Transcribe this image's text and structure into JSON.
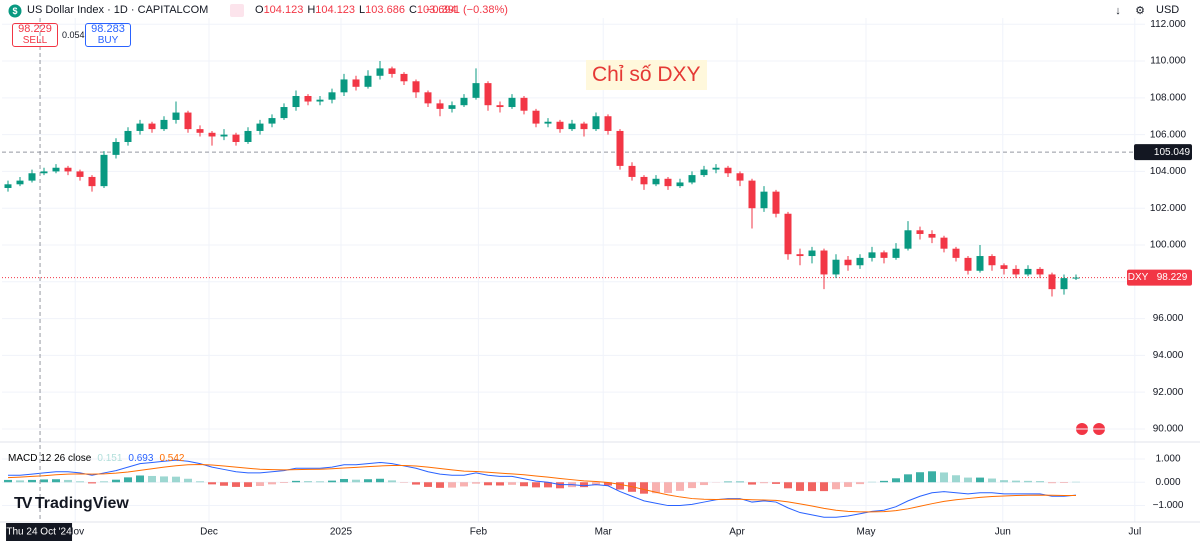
{
  "header": {
    "symbol": "US Dollar Index · 1D · CAPITALCOM",
    "ohlc": [
      {
        "label": "O",
        "value": 104.123
      },
      {
        "label": "H",
        "value": 104.123
      },
      {
        "label": "L",
        "value": 103.686
      },
      {
        "label": "C",
        "value": 103.694
      }
    ],
    "change": "−0.391 (−0.38%)",
    "sell": {
      "price": "98.229",
      "label": "SELL"
    },
    "spread": "0.054",
    "buy": {
      "price": "98.283",
      "label": "BUY"
    },
    "currency": "USD",
    "logo": "TradingView"
  },
  "chart_data": [
    {
      "type": "candlestick",
      "annotation": "Chỉ số DXY",
      "candles": [
        [
          103.1,
          103.5,
          102.9,
          103.3
        ],
        [
          103.3,
          103.7,
          103.2,
          103.5
        ],
        [
          103.5,
          104.1,
          103.4,
          103.9
        ],
        [
          103.9,
          104.2,
          103.8,
          104.0
        ],
        [
          104.0,
          104.4,
          103.9,
          104.2
        ],
        [
          104.2,
          104.3,
          103.8,
          104.0
        ],
        [
          104.0,
          104.1,
          103.5,
          103.7
        ],
        [
          103.7,
          103.8,
          102.9,
          103.2
        ],
        [
          103.2,
          105.1,
          103.1,
          104.9
        ],
        [
          104.9,
          105.8,
          104.7,
          105.6
        ],
        [
          105.6,
          106.4,
          105.4,
          106.2
        ],
        [
          106.2,
          106.8,
          106.0,
          106.6
        ],
        [
          106.6,
          106.7,
          106.1,
          106.3
        ],
        [
          106.3,
          107.0,
          106.2,
          106.8
        ],
        [
          106.8,
          107.8,
          106.6,
          107.2
        ],
        [
          107.2,
          107.3,
          106.1,
          106.3
        ],
        [
          106.3,
          106.5,
          105.9,
          106.1
        ],
        [
          106.1,
          106.2,
          105.4,
          105.9
        ],
        [
          105.9,
          106.3,
          105.7,
          106.0
        ],
        [
          106.0,
          106.1,
          105.4,
          105.6
        ],
        [
          105.6,
          106.4,
          105.5,
          106.2
        ],
        [
          106.2,
          106.8,
          106.0,
          106.6
        ],
        [
          106.6,
          107.1,
          106.4,
          106.9
        ],
        [
          106.9,
          107.7,
          106.8,
          107.5
        ],
        [
          107.5,
          108.4,
          107.3,
          108.1
        ],
        [
          108.1,
          108.2,
          107.6,
          107.8
        ],
        [
          107.8,
          108.1,
          107.6,
          107.9
        ],
        [
          107.9,
          108.5,
          107.7,
          108.3
        ],
        [
          108.3,
          109.3,
          108.1,
          109.0
        ],
        [
          109.0,
          109.2,
          108.4,
          108.6
        ],
        [
          108.6,
          109.5,
          108.5,
          109.2
        ],
        [
          109.2,
          110.0,
          109.0,
          109.6
        ],
        [
          109.6,
          109.7,
          109.1,
          109.3
        ],
        [
          109.3,
          109.4,
          108.7,
          108.9
        ],
        [
          108.9,
          109.0,
          108.0,
          108.3
        ],
        [
          108.3,
          108.4,
          107.5,
          107.7
        ],
        [
          107.7,
          107.9,
          107.0,
          107.4
        ],
        [
          107.4,
          107.8,
          107.2,
          107.6
        ],
        [
          107.6,
          108.2,
          107.5,
          108.0
        ],
        [
          108.0,
          109.6,
          107.9,
          108.8
        ],
        [
          108.8,
          108.9,
          107.3,
          107.6
        ],
        [
          107.6,
          107.8,
          107.2,
          107.5
        ],
        [
          107.5,
          108.2,
          107.4,
          108.0
        ],
        [
          108.0,
          108.1,
          107.1,
          107.3
        ],
        [
          107.3,
          107.4,
          106.4,
          106.6
        ],
        [
          106.6,
          106.9,
          106.4,
          106.7
        ],
        [
          106.7,
          106.8,
          106.1,
          106.3
        ],
        [
          106.3,
          106.8,
          106.2,
          106.6
        ],
        [
          106.6,
          106.7,
          105.9,
          106.3
        ],
        [
          106.3,
          107.2,
          106.2,
          107.0
        ],
        [
          107.0,
          107.1,
          106.0,
          106.2
        ],
        [
          106.2,
          106.3,
          104.1,
          104.3
        ],
        [
          104.3,
          104.5,
          103.5,
          103.7
        ],
        [
          103.7,
          103.8,
          103.0,
          103.3
        ],
        [
          103.3,
          103.8,
          103.2,
          103.6
        ],
        [
          103.6,
          103.7,
          103.0,
          103.2
        ],
        [
          103.2,
          103.6,
          103.1,
          103.4
        ],
        [
          103.4,
          104.0,
          103.3,
          103.8
        ],
        [
          103.8,
          104.3,
          103.7,
          104.1
        ],
        [
          104.1,
          104.4,
          103.9,
          104.2
        ],
        [
          104.2,
          104.3,
          103.7,
          103.9
        ],
        [
          103.9,
          104.0,
          103.2,
          103.5
        ],
        [
          103.5,
          103.6,
          100.9,
          102.0
        ],
        [
          102.0,
          103.2,
          101.8,
          102.9
        ],
        [
          102.9,
          103.0,
          101.5,
          101.7
        ],
        [
          101.7,
          101.8,
          99.2,
          99.5
        ],
        [
          99.5,
          99.8,
          98.9,
          99.4
        ],
        [
          99.4,
          99.9,
          99.0,
          99.7
        ],
        [
          99.7,
          99.8,
          97.6,
          98.4
        ],
        [
          98.4,
          99.5,
          98.2,
          99.2
        ],
        [
          99.2,
          99.4,
          98.6,
          98.9
        ],
        [
          98.9,
          99.5,
          98.7,
          99.3
        ],
        [
          99.3,
          99.9,
          99.1,
          99.6
        ],
        [
          99.6,
          99.7,
          99.0,
          99.3
        ],
        [
          99.3,
          100.1,
          99.2,
          99.8
        ],
        [
          99.8,
          101.3,
          99.7,
          100.8
        ],
        [
          100.8,
          101.0,
          100.3,
          100.6
        ],
        [
          100.6,
          100.8,
          100.1,
          100.4
        ],
        [
          100.4,
          100.5,
          99.6,
          99.8
        ],
        [
          99.8,
          99.9,
          99.1,
          99.3
        ],
        [
          99.3,
          99.4,
          98.4,
          98.6
        ],
        [
          98.6,
          100.0,
          98.5,
          99.4
        ],
        [
          99.4,
          99.5,
          98.6,
          98.9
        ],
        [
          98.9,
          99.0,
          98.4,
          98.7
        ],
        [
          98.7,
          98.9,
          98.2,
          98.4
        ],
        [
          98.4,
          98.9,
          98.3,
          98.7
        ],
        [
          98.7,
          98.8,
          98.2,
          98.4
        ],
        [
          98.4,
          98.5,
          97.2,
          97.6
        ],
        [
          97.6,
          98.4,
          97.3,
          98.2
        ],
        [
          98.2,
          98.4,
          98.1,
          98.229
        ]
      ],
      "up_color": "#089981",
      "down_color": "#f23645",
      "xlim": [
        -0.5,
        94.75
      ],
      "xticks": [
        {
          "value": 5.6,
          "label": "Nov"
        },
        {
          "value": 16.75,
          "label": "Dec"
        },
        {
          "value": 27.75,
          "label": "2025"
        },
        {
          "value": 39.2,
          "label": "Feb"
        },
        {
          "value": 49.6,
          "label": "Mar"
        },
        {
          "value": 60.75,
          "label": "Apr"
        },
        {
          "value": 71.5,
          "label": "May"
        },
        {
          "value": 82.9,
          "label": "Jun"
        },
        {
          "value": 93.9,
          "label": "Jul"
        }
      ],
      "crosshair": {
        "value": 2.67,
        "label": "Thu 24 Oct '24"
      },
      "ylim": [
        89.4,
        112.34
      ],
      "yticks": [
        {
          "value": 90,
          "label": "90.000"
        },
        {
          "value": 92,
          "label": "92.000"
        },
        {
          "value": 94,
          "label": "94.000"
        },
        {
          "value": 96,
          "label": "96.000"
        },
        {
          "value": 98,
          "label": "98.000"
        },
        {
          "value": 100,
          "label": "100.000"
        },
        {
          "value": 102,
          "label": "102.000"
        },
        {
          "value": 104,
          "label": "104.000"
        },
        {
          "value": 106,
          "label": "106.000"
        },
        {
          "value": 108,
          "label": "108.000"
        },
        {
          "value": 110,
          "label": "110.000"
        },
        {
          "value": 112,
          "label": "112.000"
        }
      ],
      "ref_line": {
        "value": 105.049,
        "label": "105.049"
      },
      "last_price": {
        "name": "DXY",
        "value": 98.229,
        "label": "98.229"
      },
      "grid": true
    },
    {
      "type": "macd",
      "title": "MACD 12 26 close",
      "legend_values": [
        {
          "value": 0.151,
          "color": "#b2dfdb"
        },
        {
          "value": 0.693,
          "color": "#2962ff"
        },
        {
          "value": 0.542,
          "color": "#ff6d00"
        }
      ],
      "histogram": {
        "values": [
          0.1,
          0.08,
          0.1,
          0.12,
          0.13,
          0.1,
          0.04,
          -0.05,
          0.04,
          0.11,
          0.21,
          0.29,
          0.27,
          0.25,
          0.24,
          0.15,
          0.04,
          -0.09,
          -0.15,
          -0.2,
          -0.2,
          -0.16,
          -0.09,
          -0.03,
          0.06,
          0.05,
          0.04,
          0.07,
          0.14,
          0.11,
          0.13,
          0.15,
          0.08,
          -0.02,
          -0.1,
          -0.2,
          -0.24,
          -0.23,
          -0.18,
          -0.06,
          -0.13,
          -0.14,
          -0.11,
          -0.17,
          -0.22,
          -0.22,
          -0.26,
          -0.21,
          -0.21,
          -0.13,
          -0.14,
          -0.31,
          -0.41,
          -0.49,
          -0.47,
          -0.46,
          -0.37,
          -0.25,
          -0.12,
          -0.01,
          0.03,
          0.03,
          -0.1,
          -0.04,
          -0.07,
          -0.26,
          -0.37,
          -0.38,
          -0.38,
          -0.3,
          -0.2,
          -0.08,
          0.02,
          0.06,
          0.17,
          0.34,
          0.43,
          0.47,
          0.42,
          0.3,
          0.2,
          0.2,
          0.16,
          0.09,
          0.07,
          0.06,
          0.05,
          -0.04,
          -0.03,
          0.02
        ],
        "up_color": "#26a69a",
        "down_color": "#ef5350"
      },
      "series": [
        {
          "name": "MACD",
          "color": "#2962ff",
          "values": [
            0.3,
            0.3,
            0.35,
            0.4,
            0.45,
            0.45,
            0.4,
            0.3,
            0.4,
            0.5,
            0.65,
            0.8,
            0.85,
            0.9,
            0.95,
            0.9,
            0.8,
            0.65,
            0.55,
            0.45,
            0.4,
            0.4,
            0.45,
            0.5,
            0.6,
            0.6,
            0.6,
            0.65,
            0.75,
            0.75,
            0.8,
            0.85,
            0.8,
            0.7,
            0.6,
            0.45,
            0.35,
            0.3,
            0.3,
            0.4,
            0.3,
            0.25,
            0.25,
            0.15,
            0.05,
            0.0,
            -0.1,
            -0.1,
            -0.15,
            -0.1,
            -0.15,
            -0.4,
            -0.6,
            -0.8,
            -0.9,
            -1.0,
            -1.0,
            -0.95,
            -0.85,
            -0.75,
            -0.7,
            -0.7,
            -0.85,
            -0.8,
            -0.85,
            -1.1,
            -1.3,
            -1.4,
            -1.5,
            -1.5,
            -1.45,
            -1.35,
            -1.25,
            -1.2,
            -1.05,
            -0.8,
            -0.6,
            -0.45,
            -0.4,
            -0.45,
            -0.5,
            -0.45,
            -0.45,
            -0.5,
            -0.5,
            -0.5,
            -0.5,
            -0.6,
            -0.6,
            -0.55
          ]
        },
        {
          "name": "Signal",
          "color": "#ff6d00",
          "values": [
            0.2,
            0.22,
            0.25,
            0.28,
            0.32,
            0.35,
            0.36,
            0.35,
            0.36,
            0.39,
            0.44,
            0.51,
            0.58,
            0.65,
            0.71,
            0.75,
            0.76,
            0.74,
            0.7,
            0.65,
            0.6,
            0.56,
            0.54,
            0.53,
            0.54,
            0.55,
            0.56,
            0.58,
            0.61,
            0.64,
            0.67,
            0.7,
            0.72,
            0.72,
            0.7,
            0.65,
            0.59,
            0.53,
            0.48,
            0.46,
            0.43,
            0.39,
            0.36,
            0.32,
            0.27,
            0.22,
            0.16,
            0.11,
            0.06,
            0.03,
            -0.01,
            -0.09,
            -0.19,
            -0.31,
            -0.43,
            -0.54,
            -0.63,
            -0.7,
            -0.73,
            -0.74,
            -0.73,
            -0.73,
            -0.75,
            -0.76,
            -0.78,
            -0.84,
            -0.93,
            -1.02,
            -1.12,
            -1.2,
            -1.25,
            -1.27,
            -1.27,
            -1.26,
            -1.22,
            -1.14,
            -1.03,
            -0.92,
            -0.82,
            -0.75,
            -0.7,
            -0.65,
            -0.61,
            -0.59,
            -0.57,
            -0.56,
            -0.55,
            -0.56,
            -0.57,
            -0.57
          ]
        }
      ],
      "ylim": [
        -1.62,
        1.47
      ],
      "yticks": [
        {
          "value": 1,
          "label": "1.000"
        },
        {
          "value": 0,
          "label": "0.000"
        },
        {
          "value": -1,
          "label": "−1.000"
        }
      ]
    }
  ]
}
